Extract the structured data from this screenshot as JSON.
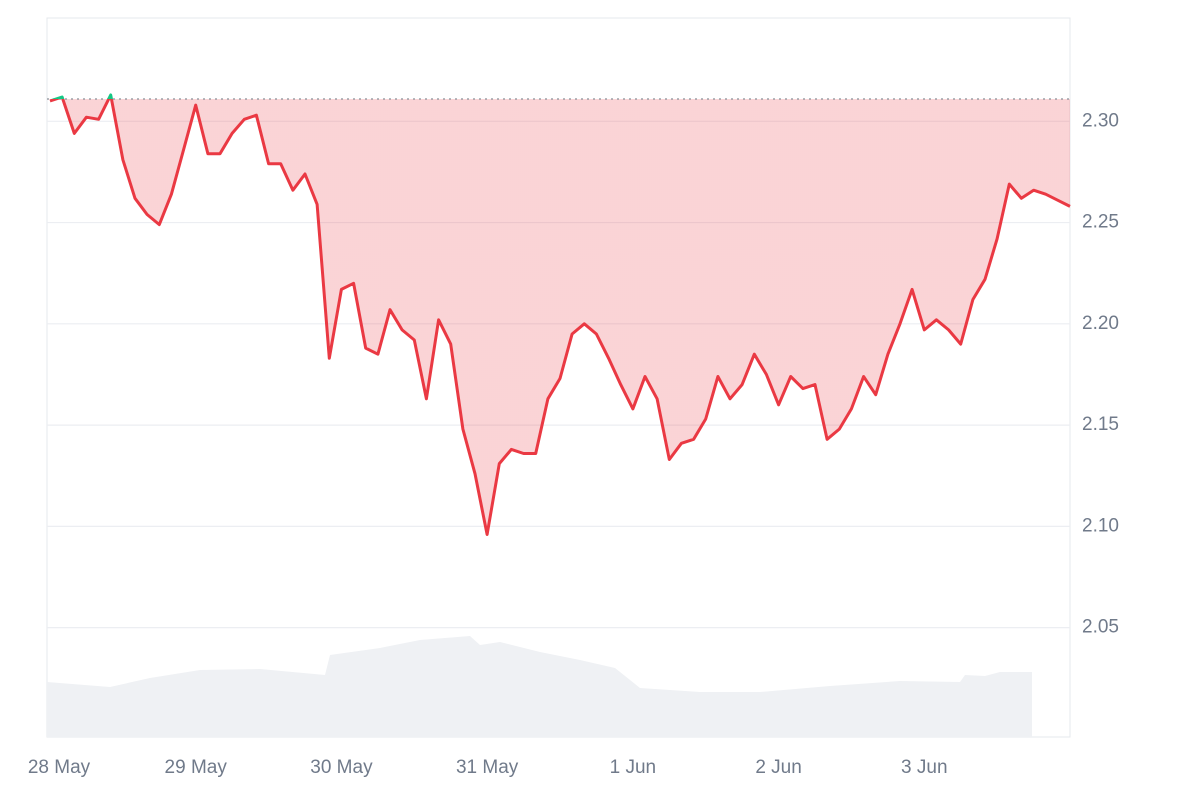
{
  "chart_data": {
    "type": "line",
    "categories": [
      "28 May",
      null,
      null,
      null,
      null,
      null,
      null,
      null,
      null,
      null,
      null,
      null,
      "29 May",
      null,
      null,
      null,
      null,
      null,
      null,
      null,
      null,
      null,
      null,
      null,
      "30 May",
      null,
      null,
      null,
      null,
      null,
      null,
      null,
      null,
      null,
      null,
      null,
      "31 May",
      null,
      null,
      null,
      null,
      null,
      null,
      null,
      null,
      null,
      null,
      null,
      "1 Jun",
      null,
      null,
      null,
      null,
      null,
      null,
      null,
      null,
      null,
      null,
      null,
      "2 Jun",
      null,
      null,
      null,
      null,
      null,
      null,
      null,
      null,
      null,
      null,
      null,
      "3 Jun",
      null,
      null,
      null,
      null,
      null,
      null,
      null,
      null,
      null,
      null,
      null,
      null
    ],
    "values": [
      2.31,
      2.312,
      2.294,
      2.302,
      2.301,
      2.313,
      2.281,
      2.262,
      2.254,
      2.249,
      2.264,
      2.286,
      2.308,
      2.284,
      2.284,
      2.294,
      2.301,
      2.303,
      2.279,
      2.279,
      2.266,
      2.274,
      2.259,
      2.183,
      2.217,
      2.22,
      2.188,
      2.185,
      2.207,
      2.197,
      2.192,
      2.163,
      2.202,
      2.19,
      2.148,
      2.126,
      2.096,
      2.131,
      2.138,
      2.136,
      2.136,
      2.163,
      2.173,
      2.195,
      2.2,
      2.195,
      2.183,
      2.17,
      2.158,
      2.174,
      2.163,
      2.133,
      2.141,
      2.143,
      2.153,
      2.174,
      2.163,
      2.17,
      2.185,
      2.175,
      2.16,
      2.174,
      2.168,
      2.17,
      2.143,
      2.148,
      2.158,
      2.174,
      2.165,
      2.185,
      2.2,
      2.217,
      2.197,
      2.202,
      2.197,
      2.19,
      2.212,
      2.222,
      2.242,
      2.269,
      2.262,
      2.266,
      2.264,
      2.261,
      2.258
    ],
    "color": "#ea3943",
    "up_color": "#16c784",
    "baseline": 2.311,
    "ylim": [
      1.996,
      2.351
    ],
    "yticks": [
      2.05,
      {
        "value": 2.1,
        "label": "2.10"
      },
      2.15,
      {
        "value": 2.2,
        "label": "2.20"
      },
      2.25,
      {
        "value": 2.3,
        "label": "2.30"
      }
    ],
    "grid": true
  }
}
